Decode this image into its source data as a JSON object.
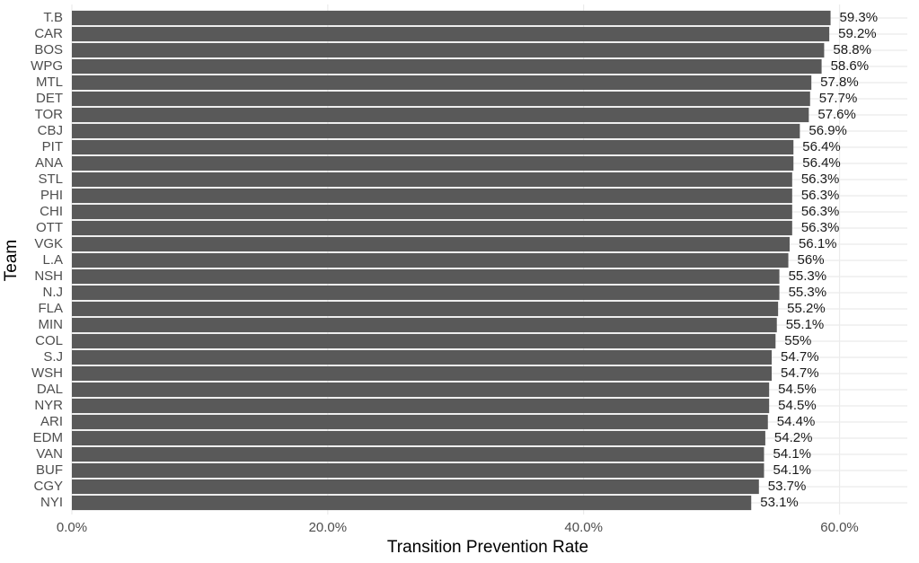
{
  "chart_data": {
    "type": "bar",
    "orientation": "horizontal",
    "x_label": "Transition Prevention Rate",
    "y_label": "Team",
    "categories": [
      "T.B",
      "CAR",
      "BOS",
      "WPG",
      "MTL",
      "DET",
      "TOR",
      "CBJ",
      "PIT",
      "ANA",
      "STL",
      "PHI",
      "CHI",
      "OTT",
      "VGK",
      "L.A",
      "NSH",
      "N.J",
      "FLA",
      "MIN",
      "COL",
      "S.J",
      "WSH",
      "DAL",
      "NYR",
      "ARI",
      "EDM",
      "VAN",
      "BUF",
      "CGY",
      "NYI"
    ],
    "values": [
      59.3,
      59.2,
      58.8,
      58.6,
      57.8,
      57.7,
      57.6,
      56.9,
      56.4,
      56.4,
      56.3,
      56.3,
      56.3,
      56.3,
      56.1,
      56,
      55.3,
      55.3,
      55.2,
      55.1,
      55,
      54.7,
      54.7,
      54.5,
      54.5,
      54.4,
      54.2,
      54.1,
      54.1,
      53.7,
      53.1
    ],
    "value_labels": [
      "59.3%",
      "59.2%",
      "58.8%",
      "58.6%",
      "57.8%",
      "57.7%",
      "57.6%",
      "56.9%",
      "56.4%",
      "56.4%",
      "56.3%",
      "56.3%",
      "56.3%",
      "56.3%",
      "56.1%",
      "56%",
      "55.3%",
      "55.3%",
      "55.2%",
      "55.1%",
      "55%",
      "54.7%",
      "54.7%",
      "54.5%",
      "54.5%",
      "54.4%",
      "54.2%",
      "54.1%",
      "54.1%",
      "53.7%",
      "53.1%"
    ],
    "color": "#595959",
    "xlim": [
      0,
      65.3
    ],
    "xticks": [
      {
        "value": 0,
        "label": "0.0%"
      },
      {
        "value": 20,
        "label": "20.0%"
      },
      {
        "value": 40,
        "label": "40.0%"
      },
      {
        "value": 60,
        "label": "60.0%"
      }
    ],
    "grid": true
  }
}
